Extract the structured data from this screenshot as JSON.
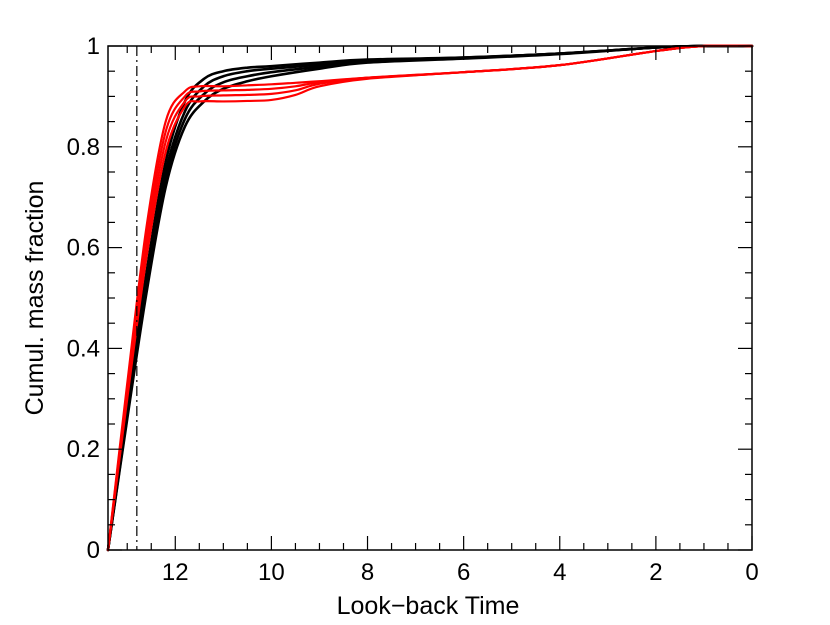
{
  "chart_data": {
    "type": "line",
    "title": "",
    "xlabel": "Look−back Time",
    "ylabel": "Cumul. mass fraction",
    "xlim": [
      13.4,
      0
    ],
    "ylim": [
      0,
      1
    ],
    "x_reversed": true,
    "x_ticks": [
      12,
      10,
      8,
      6,
      4,
      2,
      0
    ],
    "x_tick_labels": [
      "12",
      "10",
      "8",
      "6",
      "4",
      "2",
      "0"
    ],
    "y_ticks": [
      0,
      0.2,
      0.4,
      0.6,
      0.8,
      1
    ],
    "y_tick_labels": [
      "0",
      "0.2",
      "0.4",
      "0.6",
      "0.8",
      "1"
    ],
    "grid": false,
    "legend": "none",
    "colors": {
      "black_series": "#000000",
      "red_series": "#ff0000"
    },
    "reference_line": {
      "x": 12.8,
      "style": "dash-dot"
    },
    "series": [
      {
        "color": "#000000",
        "x": [
          13.4,
          13.0,
          12.6,
          12.2,
          11.8,
          11.4,
          11.0,
          10.5,
          10.0,
          9.0,
          8.0,
          6.0,
          4.0,
          2.0,
          1.0,
          0.0
        ],
        "y": [
          0.0,
          0.28,
          0.55,
          0.77,
          0.89,
          0.935,
          0.95,
          0.957,
          0.96,
          0.967,
          0.973,
          0.977,
          0.985,
          0.997,
          1.0,
          1.0
        ]
      },
      {
        "color": "#000000",
        "x": [
          13.4,
          13.0,
          12.6,
          12.2,
          11.8,
          11.4,
          11.0,
          10.5,
          10.0,
          9.0,
          8.0,
          6.0,
          4.0,
          2.0,
          1.0,
          0.0
        ],
        "y": [
          0.0,
          0.27,
          0.53,
          0.75,
          0.87,
          0.92,
          0.94,
          0.95,
          0.955,
          0.963,
          0.971,
          0.977,
          0.985,
          0.997,
          1.0,
          1.0
        ]
      },
      {
        "color": "#000000",
        "x": [
          13.4,
          13.0,
          12.6,
          12.2,
          11.8,
          11.4,
          11.0,
          10.5,
          10.0,
          9.0,
          8.0,
          6.0,
          4.0,
          2.0,
          1.0,
          0.0
        ],
        "y": [
          0.0,
          0.265,
          0.52,
          0.735,
          0.855,
          0.905,
          0.928,
          0.94,
          0.948,
          0.959,
          0.969,
          0.976,
          0.985,
          0.997,
          1.0,
          1.0
        ]
      },
      {
        "color": "#000000",
        "x": [
          13.4,
          13.0,
          12.6,
          12.2,
          11.8,
          11.4,
          11.0,
          10.5,
          10.0,
          9.0,
          8.0,
          6.0,
          4.0,
          2.0,
          1.0,
          0.0
        ],
        "y": [
          0.0,
          0.26,
          0.51,
          0.72,
          0.84,
          0.89,
          0.915,
          0.93,
          0.94,
          0.955,
          0.967,
          0.975,
          0.984,
          0.997,
          1.0,
          1.0
        ]
      },
      {
        "color": "#ff0000",
        "x": [
          13.4,
          13.0,
          12.6,
          12.2,
          11.8,
          11.5,
          11.0,
          10.5,
          10.0,
          9.5,
          9.0,
          8.0,
          6.0,
          4.0,
          2.0,
          1.0,
          0.0
        ],
        "y": [
          0.0,
          0.33,
          0.64,
          0.85,
          0.91,
          0.92,
          0.92,
          0.922,
          0.924,
          0.927,
          0.93,
          0.937,
          0.948,
          0.962,
          0.99,
          1.0,
          1.0
        ]
      },
      {
        "color": "#ff0000",
        "x": [
          13.4,
          13.0,
          12.6,
          12.2,
          11.8,
          11.5,
          11.0,
          10.5,
          10.0,
          9.5,
          9.0,
          8.0,
          6.0,
          4.0,
          2.0,
          1.0,
          0.0
        ],
        "y": [
          0.0,
          0.32,
          0.62,
          0.83,
          0.9,
          0.91,
          0.912,
          0.913,
          0.915,
          0.92,
          0.928,
          0.937,
          0.948,
          0.962,
          0.99,
          1.0,
          1.0
        ]
      },
      {
        "color": "#ff0000",
        "x": [
          13.4,
          13.0,
          12.6,
          12.2,
          11.8,
          11.5,
          11.0,
          10.5,
          10.0,
          9.5,
          9.0,
          8.0,
          6.0,
          4.0,
          2.0,
          1.0,
          0.0
        ],
        "y": [
          0.0,
          0.31,
          0.6,
          0.81,
          0.89,
          0.9,
          0.902,
          0.903,
          0.905,
          0.912,
          0.925,
          0.937,
          0.948,
          0.962,
          0.99,
          1.0,
          1.0
        ]
      },
      {
        "color": "#ff0000",
        "x": [
          13.4,
          13.0,
          12.6,
          12.2,
          11.8,
          11.5,
          11.0,
          10.5,
          10.0,
          9.5,
          9.0,
          8.0,
          6.0,
          4.0,
          2.0,
          1.0,
          0.0
        ],
        "y": [
          0.0,
          0.3,
          0.58,
          0.79,
          0.88,
          0.89,
          0.89,
          0.891,
          0.893,
          0.903,
          0.92,
          0.935,
          0.948,
          0.962,
          0.99,
          1.0,
          1.0
        ]
      }
    ]
  }
}
